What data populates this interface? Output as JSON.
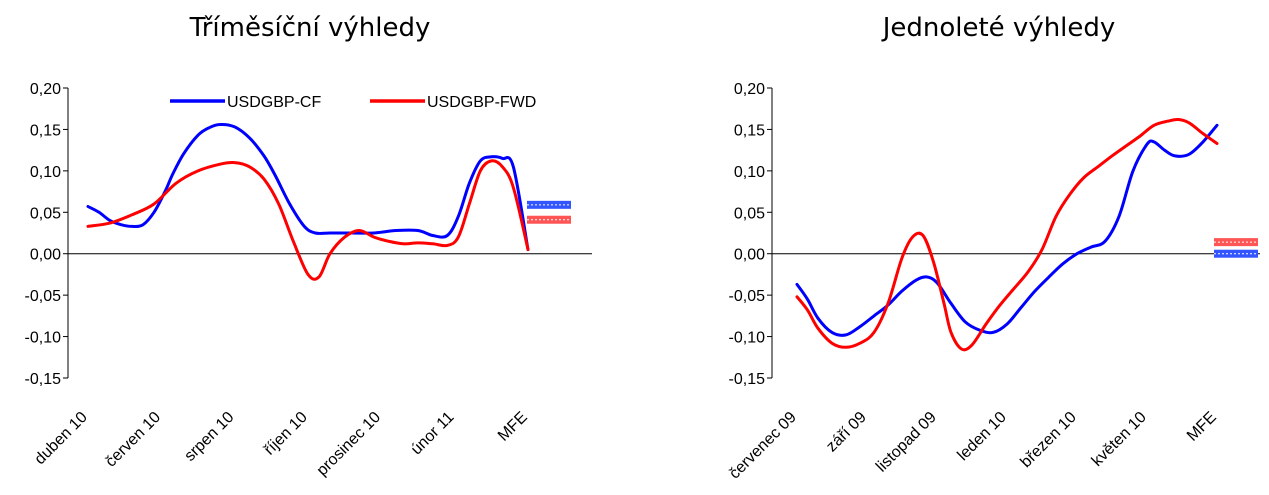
{
  "chart_data": [
    {
      "type": "line",
      "title": "Tříměsíční výhledy",
      "xlabel": "",
      "ylabel": "",
      "ylim": [
        -0.15,
        0.2
      ],
      "yticks": [
        "0,20",
        "0,15",
        "0,10",
        "0,05",
        "0,00",
        "-0,05",
        "-0,10",
        "-0,15"
      ],
      "categories": [
        "duben 10",
        "červen 10",
        "srpen 10",
        "říjen 10",
        "prosinec 10",
        "únor 11",
        "MFE"
      ],
      "legend": "top-right",
      "series": [
        {
          "name": "USDGBP-CF",
          "color": "#0000ff",
          "x": [
            0,
            0.15,
            0.3,
            0.45,
            0.6,
            0.75,
            0.9,
            1.05,
            1.15,
            1.3,
            1.5,
            1.65,
            1.8,
            2.0,
            2.2,
            2.4,
            2.55,
            2.75,
            2.95,
            3.1,
            3.3,
            3.6,
            3.9,
            4.2,
            4.5,
            4.7,
            4.9,
            5.05,
            5.2,
            5.35,
            5.5,
            5.65,
            5.8,
            6.0
          ],
          "y": [
            0.057,
            0.05,
            0.04,
            0.035,
            0.033,
            0.035,
            0.05,
            0.075,
            0.095,
            0.12,
            0.143,
            0.152,
            0.156,
            0.153,
            0.14,
            0.118,
            0.095,
            0.06,
            0.033,
            0.025,
            0.025,
            0.025,
            0.025,
            0.028,
            0.028,
            0.022,
            0.022,
            0.045,
            0.085,
            0.112,
            0.117,
            0.115,
            0.105,
            0.005
          ]
        },
        {
          "name": "USDGBP-FWD",
          "color": "#ff0000",
          "x": [
            0,
            0.3,
            0.6,
            0.9,
            1.2,
            1.5,
            1.8,
            2.0,
            2.2,
            2.4,
            2.6,
            2.8,
            3.0,
            3.15,
            3.3,
            3.5,
            3.7,
            3.9,
            4.1,
            4.3,
            4.5,
            4.7,
            4.9,
            5.05,
            5.2,
            5.35,
            5.5,
            5.65,
            5.8,
            6.0
          ],
          "y": [
            0.033,
            0.037,
            0.047,
            0.06,
            0.085,
            0.1,
            0.108,
            0.11,
            0.105,
            0.09,
            0.06,
            0.015,
            -0.025,
            -0.028,
            0.0,
            0.02,
            0.028,
            0.02,
            0.015,
            0.012,
            0.013,
            0.012,
            0.01,
            0.02,
            0.06,
            0.1,
            0.112,
            0.105,
            0.08,
            0.005
          ]
        }
      ],
      "mfe_markers": [
        {
          "series": "USDGBP-CF",
          "value": 0.059,
          "color": "#3355ff"
        },
        {
          "series": "USDGBP-FWD",
          "value": 0.041,
          "color": "#ff5555"
        }
      ]
    },
    {
      "type": "line",
      "title": "Jednoleté výhledy",
      "xlabel": "",
      "ylabel": "",
      "ylim": [
        -0.15,
        0.2
      ],
      "yticks": [
        "0,20",
        "0,15",
        "0,10",
        "0,05",
        "0,00",
        "-0,05",
        "-0,10",
        "-0,15"
      ],
      "categories": [
        "červenec 09",
        "září 09",
        "listopad 09",
        "leden 10",
        "březen 10",
        "květen 10",
        "MFE"
      ],
      "series": [
        {
          "name": "USDGBP-CF",
          "color": "#0000ff",
          "x": [
            0,
            0.15,
            0.3,
            0.5,
            0.7,
            0.9,
            1.1,
            1.3,
            1.5,
            1.7,
            1.85,
            2.0,
            2.2,
            2.4,
            2.6,
            2.8,
            3.0,
            3.2,
            3.4,
            3.6,
            3.8,
            4.0,
            4.2,
            4.4,
            4.6,
            4.8,
            5.0,
            5.1,
            5.25,
            5.4,
            5.6,
            5.8,
            6.0
          ],
          "y": [
            -0.037,
            -0.055,
            -0.078,
            -0.095,
            -0.098,
            -0.088,
            -0.075,
            -0.062,
            -0.045,
            -0.032,
            -0.028,
            -0.035,
            -0.06,
            -0.082,
            -0.092,
            -0.095,
            -0.085,
            -0.065,
            -0.045,
            -0.028,
            -0.012,
            0.0,
            0.008,
            0.015,
            0.045,
            0.1,
            0.132,
            0.135,
            0.125,
            0.118,
            0.12,
            0.135,
            0.155
          ]
        },
        {
          "name": "USDGBP-FWD",
          "color": "#ff0000",
          "x": [
            0,
            0.15,
            0.3,
            0.5,
            0.7,
            0.9,
            1.1,
            1.3,
            1.5,
            1.65,
            1.8,
            1.95,
            2.1,
            2.2,
            2.35,
            2.5,
            2.7,
            2.9,
            3.1,
            3.3,
            3.5,
            3.7,
            3.9,
            4.1,
            4.3,
            4.5,
            4.7,
            4.9,
            5.1,
            5.3,
            5.45,
            5.6,
            5.8,
            6.0
          ],
          "y": [
            -0.052,
            -0.068,
            -0.09,
            -0.108,
            -0.113,
            -0.108,
            -0.095,
            -0.06,
            -0.005,
            0.02,
            0.022,
            -0.01,
            -0.06,
            -0.095,
            -0.115,
            -0.11,
            -0.085,
            -0.062,
            -0.042,
            -0.022,
            0.005,
            0.045,
            0.072,
            0.092,
            0.105,
            0.118,
            0.13,
            0.142,
            0.155,
            0.16,
            0.162,
            0.158,
            0.145,
            0.133
          ]
        }
      ],
      "mfe_markers": [
        {
          "series": "USDGBP-FWD",
          "value": 0.014,
          "color": "#ff5555"
        },
        {
          "series": "USDGBP-CF",
          "value": 0.0,
          "color": "#3355ff"
        }
      ]
    }
  ]
}
